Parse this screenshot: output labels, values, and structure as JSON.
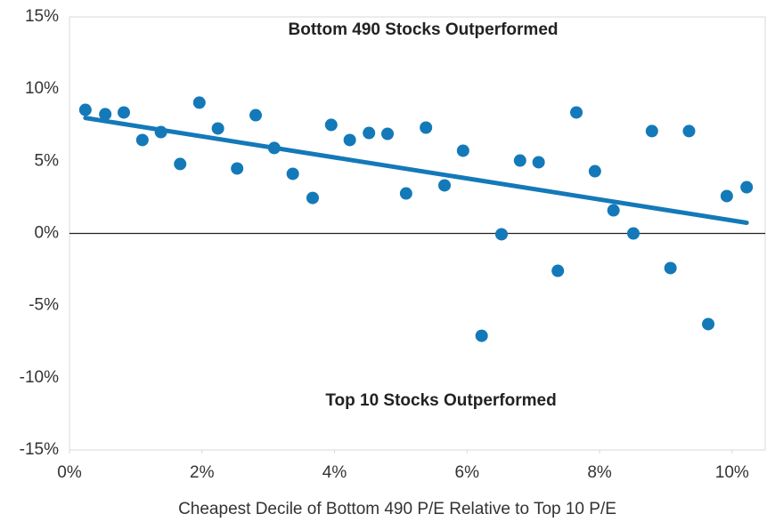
{
  "chart_data": {
    "type": "scatter",
    "annotations": [
      "Bottom 490 Stocks Outperformed",
      "Top 10 Stocks Outperformed"
    ],
    "x_label": "Cheapest Decile of Bottom 490 P/E Relative to Top 10 P/E",
    "color": "#1479b8",
    "x": [
      0.24,
      0.54,
      0.82,
      1.1,
      1.38,
      1.67,
      1.96,
      2.24,
      2.53,
      2.81,
      3.09,
      3.37,
      3.67,
      3.95,
      4.23,
      4.52,
      4.8,
      5.08,
      5.38,
      5.66,
      5.94,
      6.22,
      6.52,
      6.8,
      7.08,
      7.37,
      7.65,
      7.93,
      8.21,
      8.51,
      8.79,
      9.07,
      9.35,
      9.64,
      9.92,
      10.22
    ],
    "values": [
      8.56,
      8.26,
      8.38,
      6.47,
      7.02,
      4.81,
      9.06,
      7.27,
      4.5,
      8.19,
      5.92,
      4.13,
      2.46,
      7.52,
      6.47,
      6.96,
      6.9,
      2.77,
      7.33,
      3.33,
      5.73,
      -7.09,
      -0.06,
      5.05,
      4.93,
      -2.59,
      8.38,
      4.31,
      1.6,
      0,
      7.09,
      -2.4,
      7.09,
      -6.28,
      2.59,
      3.2
    ],
    "trendline": {
      "x": [
        0.24,
        10.22
      ],
      "y": [
        8.0,
        0.74
      ],
      "color": "#1479b8"
    },
    "xlim": [
      0,
      10.5
    ],
    "ylim": [
      -15,
      15
    ],
    "xticks": [
      {
        "value": 0,
        "label": "0%"
      },
      {
        "value": 2,
        "label": "2%"
      },
      {
        "value": 4,
        "label": "4%"
      },
      {
        "value": 6,
        "label": "6%"
      },
      {
        "value": 8,
        "label": "8%"
      },
      {
        "value": 10,
        "label": "10%"
      }
    ],
    "yticks": [
      {
        "value": -15,
        "label": "-15%"
      },
      {
        "value": -10,
        "label": "-10%"
      },
      {
        "value": -5,
        "label": "-5%"
      },
      {
        "value": 0,
        "label": "0%"
      },
      {
        "value": 5,
        "label": "5%"
      },
      {
        "value": 10,
        "label": "10%"
      },
      {
        "value": 15,
        "label": "15%"
      }
    ]
  }
}
